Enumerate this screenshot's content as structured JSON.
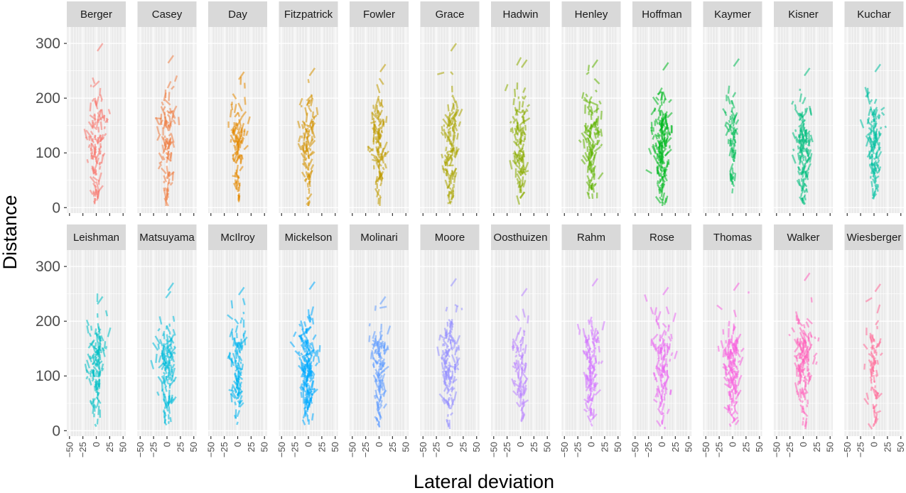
{
  "chart_data": {
    "type": "line",
    "subtype": "faceted segments (small multiples)",
    "title": "",
    "xlabel": "Lateral deviation",
    "ylabel": "Distance",
    "xlim": [
      -55,
      55
    ],
    "ylim": [
      -10,
      330
    ],
    "x_ticks": [
      -50,
      -25,
      0,
      25,
      50
    ],
    "x_tick_labels": [
      "−50",
      "−25",
      "0",
      "25",
      "50"
    ],
    "y_ticks": [
      0,
      100,
      200,
      300
    ],
    "y_tick_labels": [
      "0",
      "100",
      "200",
      "300"
    ],
    "grid": true,
    "legend": "none",
    "facet_layout": {
      "rows": 2,
      "cols": 12
    },
    "facets": [
      {
        "name": "Berger",
        "color": "#F8766D",
        "dist_max": 300,
        "spread": 10,
        "n": 110
      },
      {
        "name": "Casey",
        "color": "#EF7F46",
        "dist_max": 278,
        "spread": 9,
        "n": 100
      },
      {
        "name": "Day",
        "color": "#E38900",
        "dist_max": 248,
        "spread": 8,
        "n": 95
      },
      {
        "name": "Fitzpatrick",
        "color": "#D49200",
        "dist_max": 255,
        "spread": 9,
        "n": 95
      },
      {
        "name": "Fowler",
        "color": "#C09B00",
        "dist_max": 262,
        "spread": 9,
        "n": 105
      },
      {
        "name": "Grace",
        "color": "#A9A400",
        "dist_max": 300,
        "spread": 9,
        "n": 110
      },
      {
        "name": "Hadwin",
        "color": "#8AAB00",
        "dist_max": 270,
        "spread": 9,
        "n": 110
      },
      {
        "name": "Henley",
        "color": "#5EB300",
        "dist_max": 270,
        "spread": 10,
        "n": 120
      },
      {
        "name": "Hoffman",
        "color": "#00B81F",
        "dist_max": 265,
        "spread": 10,
        "n": 160
      },
      {
        "name": "Kaymer",
        "color": "#00BC56",
        "dist_max": 272,
        "spread": 7,
        "n": 65
      },
      {
        "name": "Kisner",
        "color": "#00BE7D",
        "dist_max": 255,
        "spread": 10,
        "n": 130
      },
      {
        "name": "Kuchar",
        "color": "#00C0A1",
        "dist_max": 262,
        "spread": 9,
        "n": 120
      },
      {
        "name": "Leishman",
        "color": "#00BFC4",
        "dist_max": 245,
        "spread": 10,
        "n": 120
      },
      {
        "name": "Matsuyama",
        "color": "#00BBDA",
        "dist_max": 270,
        "spread": 11,
        "n": 120
      },
      {
        "name": "McIlroy",
        "color": "#00B4EF",
        "dist_max": 262,
        "spread": 8,
        "n": 100
      },
      {
        "name": "Mickelson",
        "color": "#00A9FF",
        "dist_max": 272,
        "spread": 10,
        "n": 170
      },
      {
        "name": "Molinari",
        "color": "#619CFF",
        "dist_max": 245,
        "spread": 9,
        "n": 110
      },
      {
        "name": "Moore",
        "color": "#9590FF",
        "dist_max": 278,
        "spread": 10,
        "n": 120
      },
      {
        "name": "Oosthuizen",
        "color": "#B983FF",
        "dist_max": 260,
        "spread": 8,
        "n": 80
      },
      {
        "name": "Rahm",
        "color": "#D476FF",
        "dist_max": 278,
        "spread": 9,
        "n": 115
      },
      {
        "name": "Rose",
        "color": "#EA6AF1",
        "dist_max": 262,
        "spread": 11,
        "n": 110
      },
      {
        "name": "Thomas",
        "color": "#F863DF",
        "dist_max": 270,
        "spread": 10,
        "n": 140
      },
      {
        "name": "Walker",
        "color": "#FF62BC",
        "dist_max": 288,
        "spread": 10,
        "n": 130
      },
      {
        "name": "Wiesberger",
        "color": "#FF6A98",
        "dist_max": 268,
        "spread": 8,
        "n": 70
      }
    ]
  }
}
